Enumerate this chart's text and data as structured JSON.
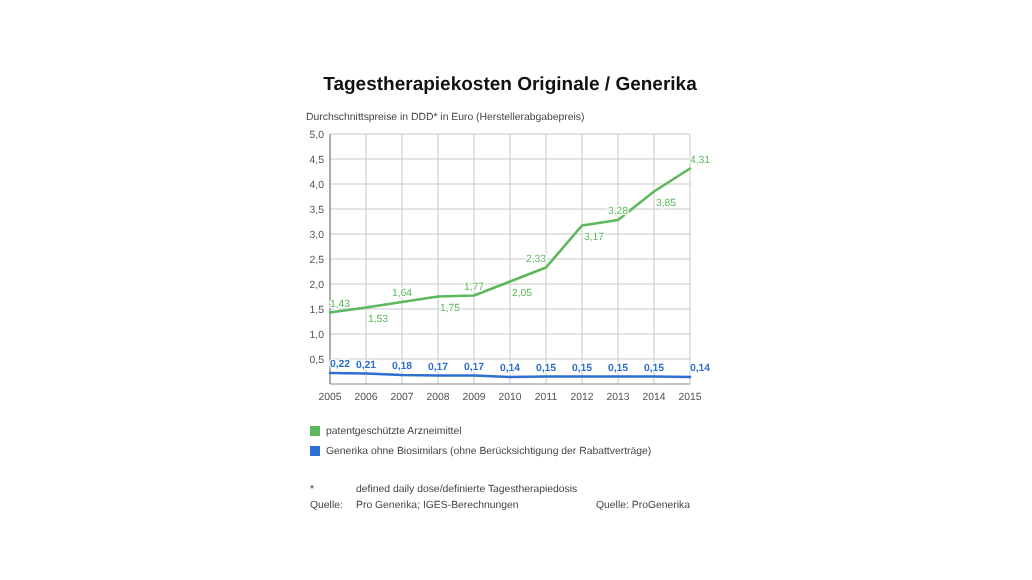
{
  "chart_data": {
    "type": "line",
    "title": "Tagestherapiekosten Originale / Generika",
    "ylabel": "Durchschnittspreise in DDD* in Euro (Herstellerabgabepreis)",
    "categories": [
      "2005",
      "2006",
      "2007",
      "2008",
      "2009",
      "2010",
      "2011",
      "2012",
      "2013",
      "2014",
      "2015"
    ],
    "series": [
      {
        "name": "patentgeschützte Arzneimittel",
        "color": "#5cb85c",
        "values": [
          1.43,
          1.53,
          1.64,
          1.75,
          1.77,
          2.05,
          2.33,
          3.17,
          3.28,
          3.85,
          4.31
        ],
        "value_labels": [
          "1,43",
          "1,53",
          "1,64",
          "1,75",
          "1,77",
          "2,05",
          "2,33",
          "3,17",
          "3,28",
          "3,85",
          "4,31"
        ]
      },
      {
        "name": "Generika ohne Biosimilars (ohne Berücksichtigung der Rabattverträge)",
        "color": "#2f6fd0",
        "values": [
          0.22,
          0.21,
          0.18,
          0.17,
          0.17,
          0.14,
          0.15,
          0.15,
          0.15,
          0.15,
          0.14
        ],
        "value_labels": [
          "0,22",
          "0,21",
          "0,18",
          "0,17",
          "0,17",
          "0,14",
          "0,15",
          "0,15",
          "0,15",
          "0,15",
          "0,14"
        ]
      }
    ],
    "ylim": [
      0,
      5
    ],
    "yticks": [
      {
        "value": 0.5,
        "label": "0,5"
      },
      {
        "value": 1,
        "label": "1,0"
      },
      {
        "value": 1.5,
        "label": "1,5"
      },
      {
        "value": 2,
        "label": "2,0"
      },
      {
        "value": 2.5,
        "label": "2,5"
      },
      {
        "value": 3,
        "label": "3,0"
      },
      {
        "value": 3.5,
        "label": "3,5"
      },
      {
        "value": 4,
        "label": "4,0"
      },
      {
        "value": 4.5,
        "label": "4,5"
      },
      {
        "value": 5,
        "label": "5,0"
      }
    ],
    "grid": true,
    "legend": "bottom",
    "marker": "none",
    "line_style": "solid",
    "annotations": [
      "*",
      "defined daily dose/definierte Tagestherapiedosis",
      "Quelle:",
      "Pro Generika; IGES-Berechnungen",
      "Quelle: ProGenerika"
    ]
  }
}
